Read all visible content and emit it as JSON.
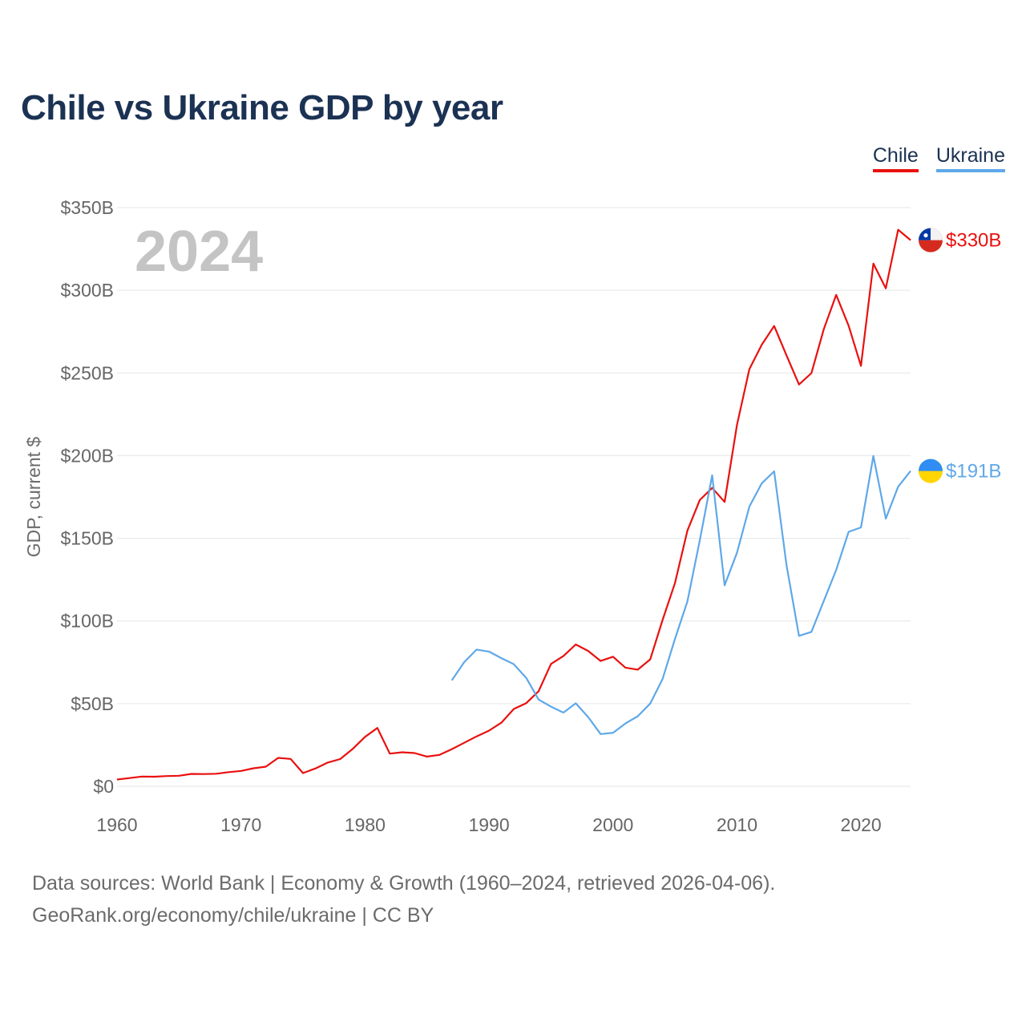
{
  "title": "Chile vs Ukraine GDP by year",
  "legend": {
    "chile": "Chile",
    "ukraine": "Ukraine"
  },
  "year_watermark": "2024",
  "footer": {
    "line1": "Data sources: World Bank | Economy & Growth (1960–2024, retrieved 2026-04-06).",
    "line2": "GeoRank.org/economy/chile/ukraine | CC BY"
  },
  "colors": {
    "chile": "#e8110f",
    "ukraine": "#5fa8e8",
    "title": "#1b3253",
    "grid": "#e6e6e6",
    "axis_text": "#666666",
    "watermark": "#c4c4c4"
  },
  "chart_data": {
    "type": "line",
    "title": "Chile vs Ukraine GDP by year",
    "xlabel": "",
    "ylabel": "GDP, current $",
    "xlim": [
      1960,
      2024
    ],
    "ylim": [
      0,
      350
    ],
    "xticks": [
      1960,
      1970,
      1980,
      1990,
      2000,
      2010,
      2020
    ],
    "yticks": [
      0,
      50,
      100,
      150,
      200,
      250,
      300,
      350
    ],
    "ytick_labels": [
      "$0",
      "$50B",
      "$100B",
      "$150B",
      "$200B",
      "$250B",
      "$300B",
      "$350B"
    ],
    "series": [
      {
        "name": "Chile",
        "key": "chile",
        "end_label": "$330B",
        "x": [
          1960,
          1961,
          1962,
          1963,
          1964,
          1965,
          1966,
          1967,
          1968,
          1969,
          1970,
          1971,
          1972,
          1973,
          1974,
          1975,
          1976,
          1977,
          1978,
          1979,
          1980,
          1981,
          1982,
          1983,
          1984,
          1985,
          1986,
          1987,
          1988,
          1989,
          1990,
          1991,
          1992,
          1993,
          1994,
          1995,
          1996,
          1997,
          1998,
          1999,
          2000,
          2001,
          2002,
          2003,
          2004,
          2005,
          2006,
          2007,
          2008,
          2009,
          2010,
          2011,
          2012,
          2013,
          2014,
          2015,
          2016,
          2017,
          2018,
          2019,
          2020,
          2021,
          2022,
          2023,
          2024
        ],
        "values": [
          4.1,
          5,
          5.9,
          5.8,
          6.2,
          6.4,
          7.5,
          7.4,
          7.6,
          8.6,
          9.3,
          10.9,
          11.9,
          17.2,
          16.6,
          8,
          10.8,
          14.4,
          16.5,
          22.6,
          29.9,
          35.3,
          19.8,
          20.6,
          20.1,
          18,
          19,
          22.5,
          26.3,
          30.2,
          33.7,
          38.5,
          46.8,
          50.3,
          57.5,
          74,
          78.8,
          85.8,
          81.9,
          75.8,
          78.4,
          71.8,
          70.6,
          76.8,
          100.6,
          123,
          154.7,
          173.1,
          180.5,
          172,
          218.5,
          252.3,
          267.1,
          278.4,
          260.5,
          243,
          249.9,
          276.4,
          297.2,
          278.6,
          254.3,
          316.1,
          301.2,
          336.6,
          330.3
        ]
      },
      {
        "name": "Ukraine",
        "key": "ukraine",
        "end_label": "$191B",
        "x": [
          1987,
          1988,
          1989,
          1990,
          1991,
          1992,
          1993,
          1994,
          1995,
          1996,
          1997,
          1998,
          1999,
          2000,
          2001,
          2002,
          2003,
          2004,
          2005,
          2006,
          2007,
          2008,
          2009,
          2010,
          2011,
          2012,
          2013,
          2014,
          2015,
          2016,
          2017,
          2018,
          2019,
          2020,
          2021,
          2022,
          2023,
          2024
        ],
        "values": [
          64.1,
          75.1,
          82.7,
          81.5,
          77.5,
          73.9,
          65.6,
          52.5,
          48.2,
          44.6,
          50.2,
          41.9,
          31.6,
          32.4,
          38,
          42.4,
          50.1,
          64.9,
          89.2,
          111.9,
          148.7,
          188.1,
          121.6,
          141.2,
          169.2,
          183.3,
          190.5,
          133.5,
          91,
          93.4,
          112.1,
          130.9,
          153.9,
          156.6,
          199.8,
          161.9,
          181.2,
          190.7
        ]
      }
    ]
  }
}
